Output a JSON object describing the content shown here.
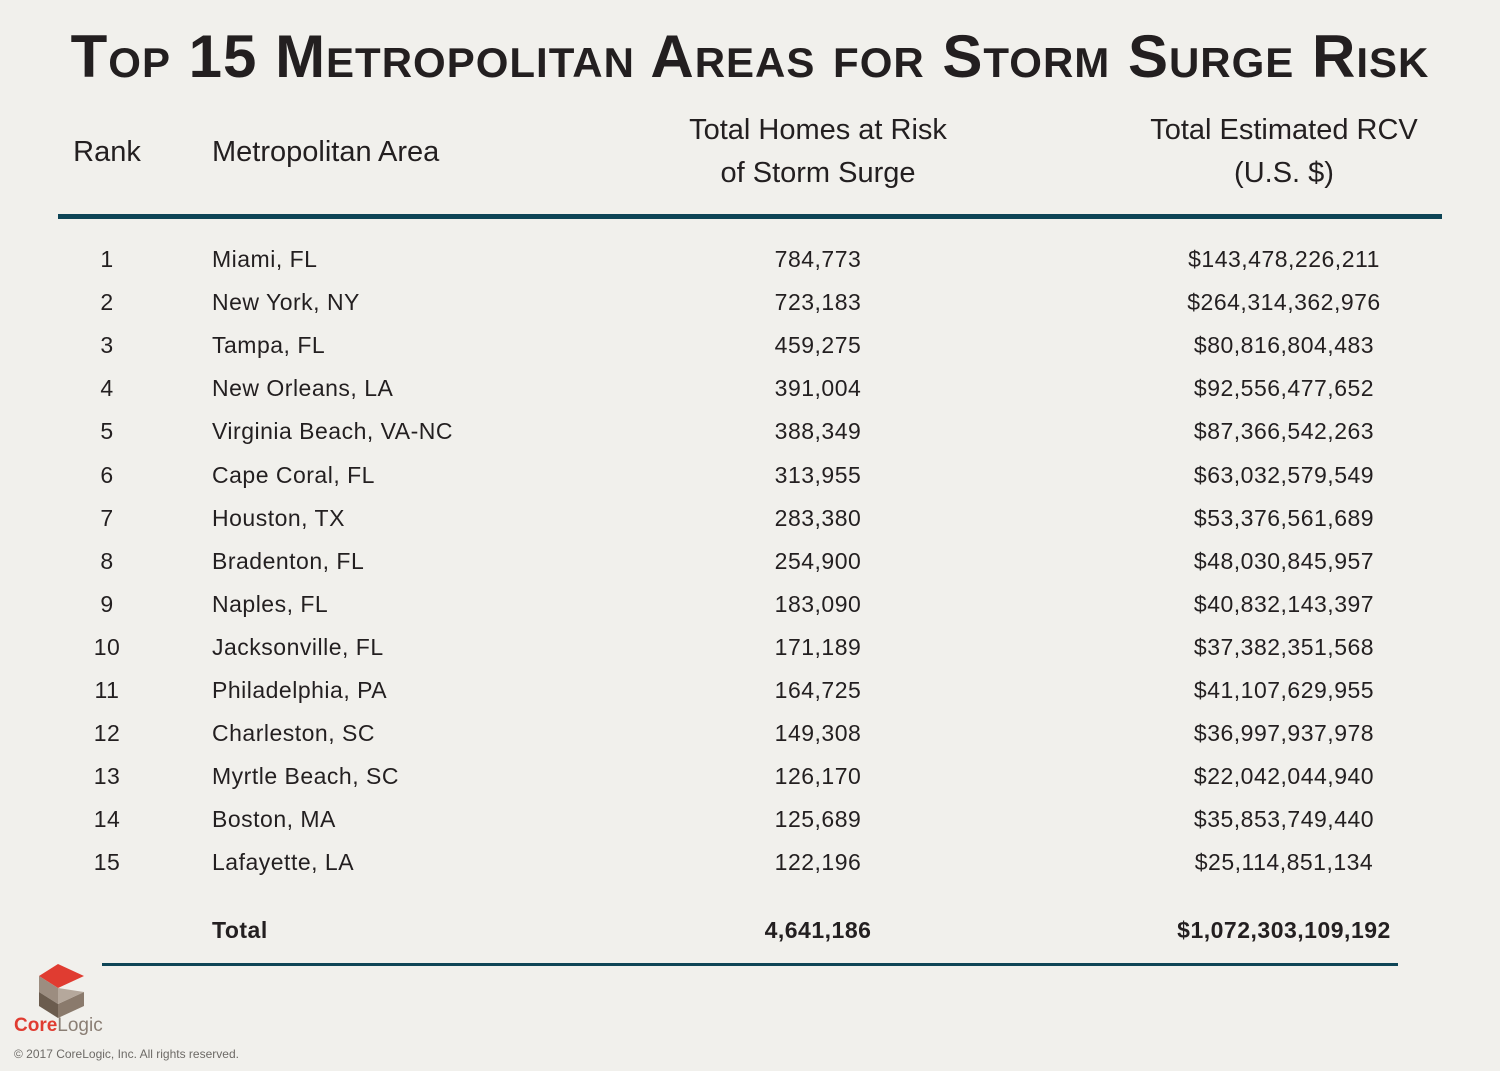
{
  "title": "Top 15 Metropolitan Areas for Storm Surge Risk",
  "headers": {
    "rank": "Rank",
    "area": "Metropolitan Area",
    "homes_line1": "Total Homes at Risk",
    "homes_line2": "of Storm Surge",
    "rcv_line1": "Total Estimated RCV",
    "rcv_line2": "(U.S. $)"
  },
  "rows": [
    {
      "rank": "1",
      "area": "Miami, FL",
      "homes": "784,773",
      "rcv": "$143,478,226,211"
    },
    {
      "rank": "2",
      "area": "New York, NY",
      "homes": "723,183",
      "rcv": "$264,314,362,976"
    },
    {
      "rank": "3",
      "area": "Tampa, FL",
      "homes": "459,275",
      "rcv": "$80,816,804,483"
    },
    {
      "rank": "4",
      "area": "New Orleans, LA",
      "homes": "391,004",
      "rcv": "$92,556,477,652"
    },
    {
      "rank": "5",
      "area": "Virginia Beach, VA-NC",
      "homes": "388,349",
      "rcv": "$87,366,542,263"
    },
    {
      "rank": "6",
      "area": "Cape Coral, FL",
      "homes": "313,955",
      "rcv": "$63,032,579,549"
    },
    {
      "rank": "7",
      "area": "Houston, TX",
      "homes": "283,380",
      "rcv": "$53,376,561,689"
    },
    {
      "rank": "8",
      "area": "Bradenton, FL",
      "homes": "254,900",
      "rcv": "$48,030,845,957"
    },
    {
      "rank": "9",
      "area": "Naples, FL",
      "homes": "183,090",
      "rcv": "$40,832,143,397"
    },
    {
      "rank": "10",
      "area": "Jacksonville, FL",
      "homes": "171,189",
      "rcv": "$37,382,351,568"
    },
    {
      "rank": "11",
      "area": "Philadelphia, PA",
      "homes": "164,725",
      "rcv": "$41,107,629,955"
    },
    {
      "rank": "12",
      "area": "Charleston, SC",
      "homes": "149,308",
      "rcv": "$36,997,937,978"
    },
    {
      "rank": "13",
      "area": "Myrtle Beach, SC",
      "homes": "126,170",
      "rcv": "$22,042,044,940"
    },
    {
      "rank": "14",
      "area": "Boston, MA",
      "homes": "125,689",
      "rcv": "$35,853,749,440"
    },
    {
      "rank": "15",
      "area": "Lafayette, LA",
      "homes": "122,196",
      "rcv": "$25,114,851,134"
    }
  ],
  "total": {
    "label": "Total",
    "homes": "4,641,186",
    "rcv": "$1,072,303,109,192"
  },
  "footer": {
    "logo_text_core": "Core",
    "logo_text_logic": "Logic",
    "copyright": "© 2017 CoreLogic, Inc. All rights reserved."
  },
  "colors": {
    "background": "#f1f0ec",
    "rule": "#0e4556",
    "brand_red": "#e03c31",
    "brand_taupe": "#8a7e74"
  }
}
